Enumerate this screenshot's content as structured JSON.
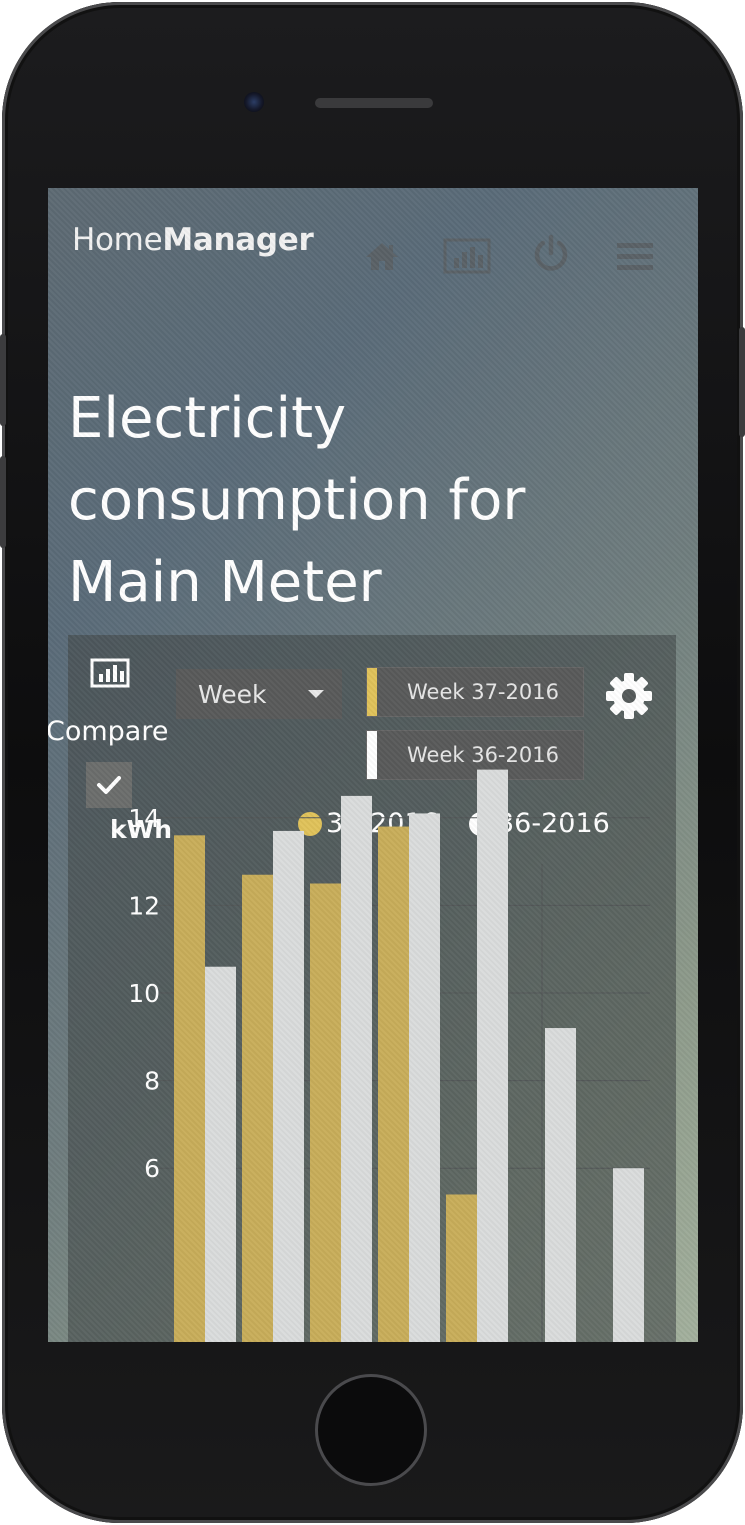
{
  "app": {
    "brand_regular": "Home",
    "brand_bold": "Manager"
  },
  "nav": {
    "icons": [
      "home-icon",
      "chart-icon",
      "power-icon",
      "menu-icon"
    ]
  },
  "page": {
    "title_lines": [
      "Electricity",
      "consumption for",
      "Main Meter"
    ]
  },
  "controls": {
    "period": "Week",
    "current_period": "Week 37-2016",
    "compare_period": "Week 36-2016",
    "compare_label": "Compare",
    "compare_checked": true
  },
  "colors": {
    "current": "#c8ad5a",
    "compare": "#dadcdc",
    "grid": "#525657"
  },
  "chart_data": {
    "type": "bar",
    "ylabel": "kWh",
    "yticks": [
      6,
      8,
      10,
      12,
      14
    ],
    "legend_placement": "top",
    "series": [
      {
        "name": "37-2016",
        "values": [
          13.6,
          12.7,
          12.5,
          13.8,
          5.4,
          null,
          null
        ]
      },
      {
        "name": "36-2016",
        "values": [
          10.6,
          13.7,
          14.5,
          14.1,
          15.1,
          9.2,
          6.0
        ]
      }
    ]
  }
}
